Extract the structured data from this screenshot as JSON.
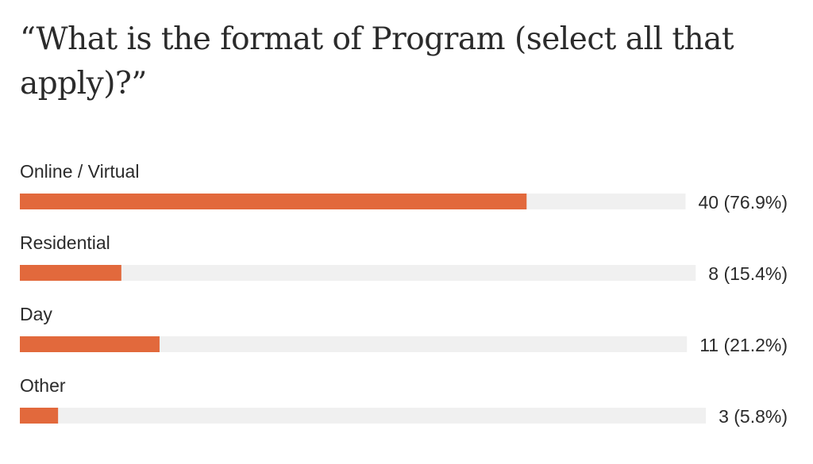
{
  "title": "“What is the format of Program (select all that apply)?”",
  "colors": {
    "bar": "#e2693c",
    "track": "#f0f0f0",
    "text": "#2b2b2b"
  },
  "chart_data": {
    "type": "bar",
    "orientation": "horizontal",
    "title": "“What is the format of Program (select all that apply)?”",
    "categories": [
      "Online / Virtual",
      "Residential",
      "Day",
      "Other"
    ],
    "values": [
      40,
      8,
      11,
      3
    ],
    "percent_labels": [
      "(76.9%)",
      "(15.4%)",
      "(21.2%)",
      "(5.8%)"
    ],
    "fractions": [
      0.769,
      0.154,
      0.212,
      0.058
    ],
    "xlim": [
      0,
      1
    ],
    "grid": false,
    "legend": "none"
  }
}
